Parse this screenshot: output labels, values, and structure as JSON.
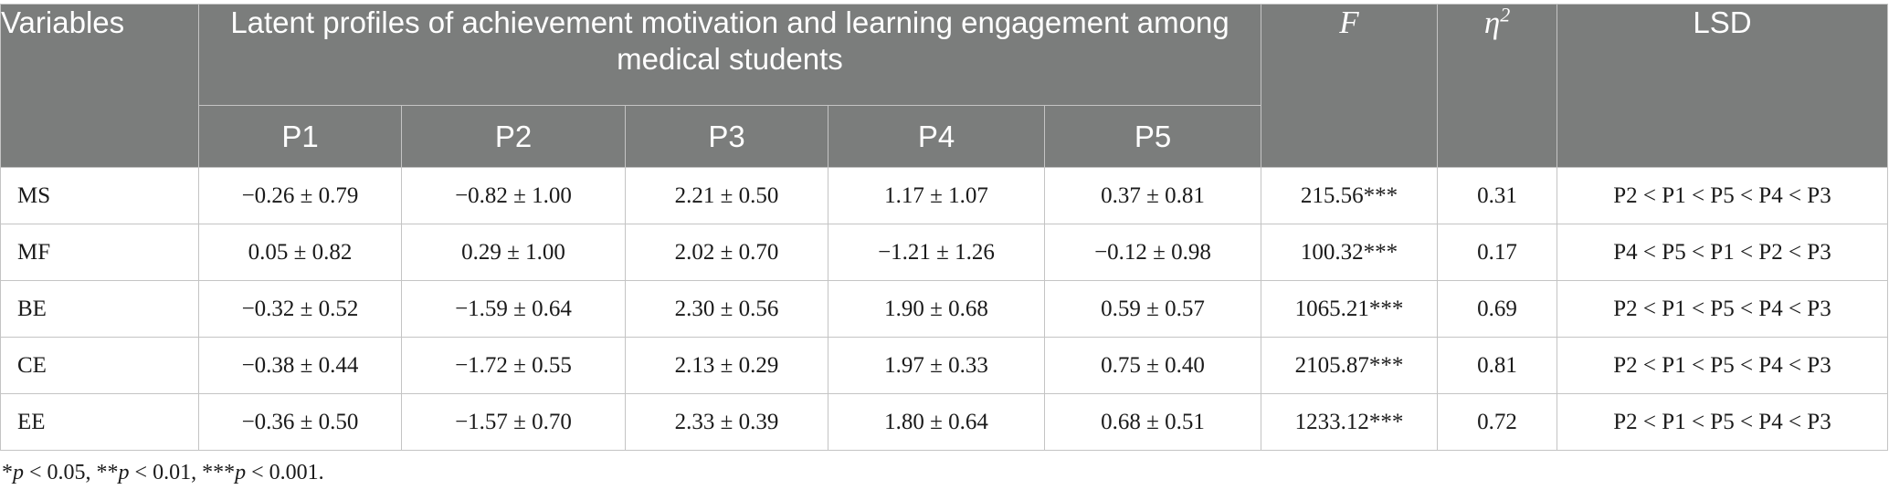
{
  "header": {
    "variables": "Variables",
    "group_title": "Latent profiles of achievement motivation and learning engagement among medical students",
    "profiles": [
      "P1",
      "P2",
      "P3",
      "P4",
      "P5"
    ],
    "f_label": "F",
    "eta_label": "η",
    "eta_sup": "2",
    "lsd_label": "LSD"
  },
  "rows": [
    {
      "variable": "MS",
      "p1": "−0.26 ± 0.79",
      "p2": "−0.82 ± 1.00",
      "p3": "2.21 ± 0.50",
      "p4": "1.17 ± 1.07",
      "p5": "0.37 ± 0.81",
      "f": "215.56***",
      "eta": "0.31",
      "lsd": "P2 < P1 < P5 < P4 < P3"
    },
    {
      "variable": "MF",
      "p1": "0.05 ± 0.82",
      "p2": "0.29 ± 1.00",
      "p3": "2.02 ± 0.70",
      "p4": "−1.21 ± 1.26",
      "p5": "−0.12 ± 0.98",
      "f": "100.32***",
      "eta": "0.17",
      "lsd": "P4 < P5 < P1 < P2 < P3"
    },
    {
      "variable": "BE",
      "p1": "−0.32 ± 0.52",
      "p2": "−1.59 ± 0.64",
      "p3": "2.30 ± 0.56",
      "p4": "1.90 ± 0.68",
      "p5": "0.59 ± 0.57",
      "f": "1065.21***",
      "eta": "0.69",
      "lsd": "P2 < P1 < P5 < P4 < P3"
    },
    {
      "variable": "CE",
      "p1": "−0.38 ± 0.44",
      "p2": "−1.72 ± 0.55",
      "p3": "2.13 ± 0.29",
      "p4": "1.97 ± 0.33",
      "p5": "0.75 ± 0.40",
      "f": "2105.87***",
      "eta": "0.81",
      "lsd": "P2 < P1 < P5 < P4 < P3"
    },
    {
      "variable": "EE",
      "p1": "−0.36 ± 0.50",
      "p2": "−1.57 ± 0.70",
      "p3": "2.33 ± 0.39",
      "p4": "1.80 ± 0.64",
      "p5": "0.68 ± 0.51",
      "f": "1233.12***",
      "eta": "0.72",
      "lsd": "P2 < P1 < P5 < P4 < P3"
    }
  ],
  "footnote": {
    "s1": "*",
    "p1": "p",
    "t1": " < 0.05, **",
    "p2": "p",
    "t2": " < 0.01, ***",
    "p3": "p",
    "t3": " < 0.001."
  },
  "colors": {
    "header_bg": "#7b7d7c",
    "header_text": "#ffffff",
    "border": "#c4c4c4"
  }
}
